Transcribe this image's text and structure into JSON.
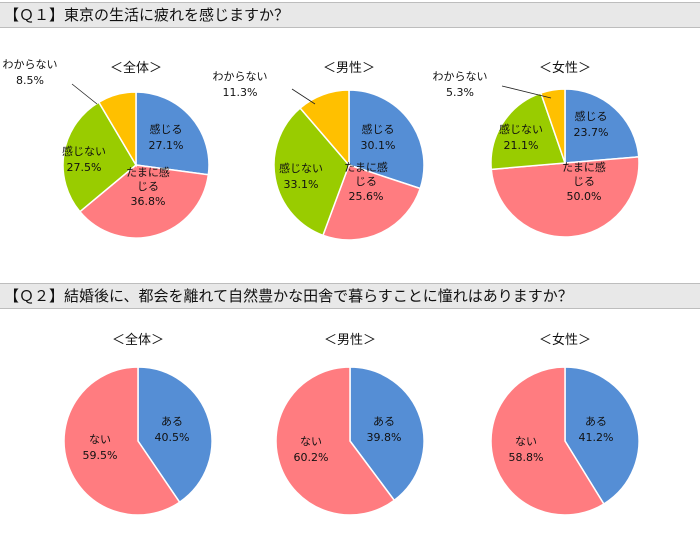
{
  "questions": [
    {
      "label": "【Ｑ１】東京の生活に疲れを感じますか？"
    },
    {
      "label": "【Ｑ２】結婚後に、都会を離れて自然豊かな田舎で暮らすことに憧れはありますか？"
    }
  ],
  "colors": {
    "blue": "#558ED5",
    "pink": "#FF7C80",
    "green": "#99CC00",
    "yellow": "#FFC000"
  },
  "chart_data": [
    {
      "type": "pie",
      "title": "＜全体＞",
      "slices": [
        {
          "label": "感じる",
          "value": 27.1,
          "value_label": "27.1%",
          "color": "#558ED5"
        },
        {
          "label": "たまに感じる",
          "value": 36.8,
          "value_label": "36.8%",
          "color": "#FF7C80"
        },
        {
          "label": "感じない",
          "value": 27.5,
          "value_label": "27.5%",
          "color": "#99CC00"
        },
        {
          "label": "わからない",
          "value": 8.5,
          "value_label": "8.5%",
          "color": "#FFC000"
        }
      ]
    },
    {
      "type": "pie",
      "title": "＜男性＞",
      "slices": [
        {
          "label": "感じる",
          "value": 30.1,
          "value_label": "30.1%",
          "color": "#558ED5"
        },
        {
          "label": "たまに感じる",
          "value": 25.6,
          "value_label": "25.6%",
          "color": "#FF7C80"
        },
        {
          "label": "感じない",
          "value": 33.1,
          "value_label": "33.1%",
          "color": "#99CC00"
        },
        {
          "label": "わからない",
          "value": 11.3,
          "value_label": "11.3%",
          "color": "#FFC000"
        }
      ]
    },
    {
      "type": "pie",
      "title": "＜女性＞",
      "slices": [
        {
          "label": "感じる",
          "value": 23.7,
          "value_label": "23.7%",
          "color": "#558ED5"
        },
        {
          "label": "たまに感じる",
          "value": 50.0,
          "value_label": "50.0%",
          "color": "#FF7C80"
        },
        {
          "label": "感じない",
          "value": 21.1,
          "value_label": "21.1%",
          "color": "#99CC00"
        },
        {
          "label": "わからない",
          "value": 5.3,
          "value_label": "5.3%",
          "color": "#FFC000"
        }
      ]
    },
    {
      "type": "pie",
      "title": "＜全体＞",
      "slices": [
        {
          "label": "ある",
          "value": 40.5,
          "value_label": "40.5%",
          "color": "#558ED5"
        },
        {
          "label": "ない",
          "value": 59.5,
          "value_label": "59.5%",
          "color": "#FF7C80"
        }
      ]
    },
    {
      "type": "pie",
      "title": "＜男性＞",
      "slices": [
        {
          "label": "ある",
          "value": 39.8,
          "value_label": "39.8%",
          "color": "#558ED5"
        },
        {
          "label": "ない",
          "value": 60.2,
          "value_label": "60.2%",
          "color": "#FF7C80"
        }
      ]
    },
    {
      "type": "pie",
      "title": "＜女性＞",
      "slices": [
        {
          "label": "ある",
          "value": 41.2,
          "value_label": "41.2%",
          "color": "#558ED5"
        },
        {
          "label": "ない",
          "value": 58.8,
          "value_label": "58.8%",
          "color": "#FF7C80"
        }
      ]
    }
  ]
}
